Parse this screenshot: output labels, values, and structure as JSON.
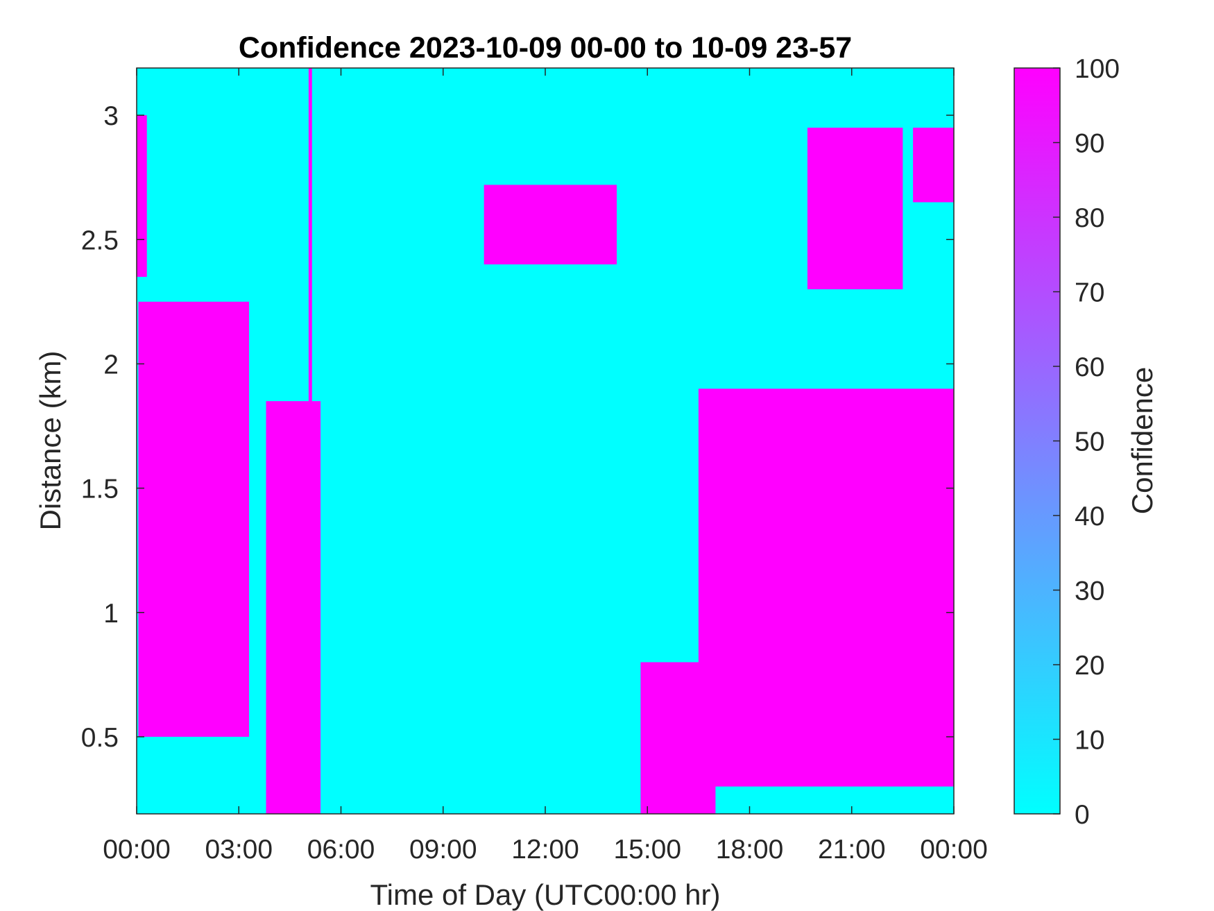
{
  "chart_data": {
    "type": "heatmap",
    "title": "Confidence 2023-10-09 00-00 to 10-09 23-57",
    "xlabel": "Time of Day (UTC00:00 hr)",
    "ylabel": "Distance (km)",
    "xlim": [
      0,
      24
    ],
    "ylim": [
      0.19,
      3.19
    ],
    "x_ticks": [
      0,
      3,
      6,
      9,
      12,
      15,
      18,
      21,
      24
    ],
    "x_tick_labels": [
      "00:00",
      "03:00",
      "06:00",
      "09:00",
      "12:00",
      "15:00",
      "18:00",
      "21:00",
      "00:00"
    ],
    "y_ticks": [
      0.5,
      1,
      1.5,
      2,
      2.5,
      3
    ],
    "y_tick_labels": [
      "0.5",
      "1",
      "1.5",
      "2",
      "2.5",
      "3"
    ],
    "colorbar": {
      "label": "Confidence",
      "range": [
        0,
        100
      ],
      "ticks": [
        0,
        10,
        20,
        30,
        40,
        50,
        60,
        70,
        80,
        90,
        100
      ],
      "tick_labels": [
        "0",
        "10",
        "20",
        "30",
        "40",
        "50",
        "60",
        "70",
        "80",
        "90",
        "100"
      ],
      "color_low": "#00ffff",
      "color_high": "#ff00ff"
    },
    "background_value": 0,
    "high_confidence_regions": [
      {
        "value": 100,
        "time_range": [
          0.0,
          0.3
        ],
        "distance_range": [
          2.35,
          3.0
        ]
      },
      {
        "value": 100,
        "time_range": [
          0.05,
          3.3
        ],
        "distance_range": [
          0.5,
          2.25
        ]
      },
      {
        "value": 100,
        "time_range": [
          3.8,
          5.4
        ],
        "distance_range": [
          0.19,
          1.85
        ]
      },
      {
        "value": 100,
        "time_range": [
          5.05,
          5.15
        ],
        "distance_range": [
          0.19,
          3.19
        ]
      },
      {
        "value": 100,
        "time_range": [
          10.2,
          14.1
        ],
        "distance_range": [
          2.4,
          2.72
        ]
      },
      {
        "value": 100,
        "time_range": [
          14.8,
          17.0
        ],
        "distance_range": [
          0.19,
          0.8
        ]
      },
      {
        "value": 100,
        "time_range": [
          16.5,
          24.0
        ],
        "distance_range": [
          0.3,
          1.9
        ]
      },
      {
        "value": 100,
        "time_range": [
          19.7,
          22.5
        ],
        "distance_range": [
          2.3,
          2.95
        ]
      },
      {
        "value": 100,
        "time_range": [
          22.8,
          24.0
        ],
        "distance_range": [
          2.65,
          2.95
        ]
      }
    ]
  }
}
